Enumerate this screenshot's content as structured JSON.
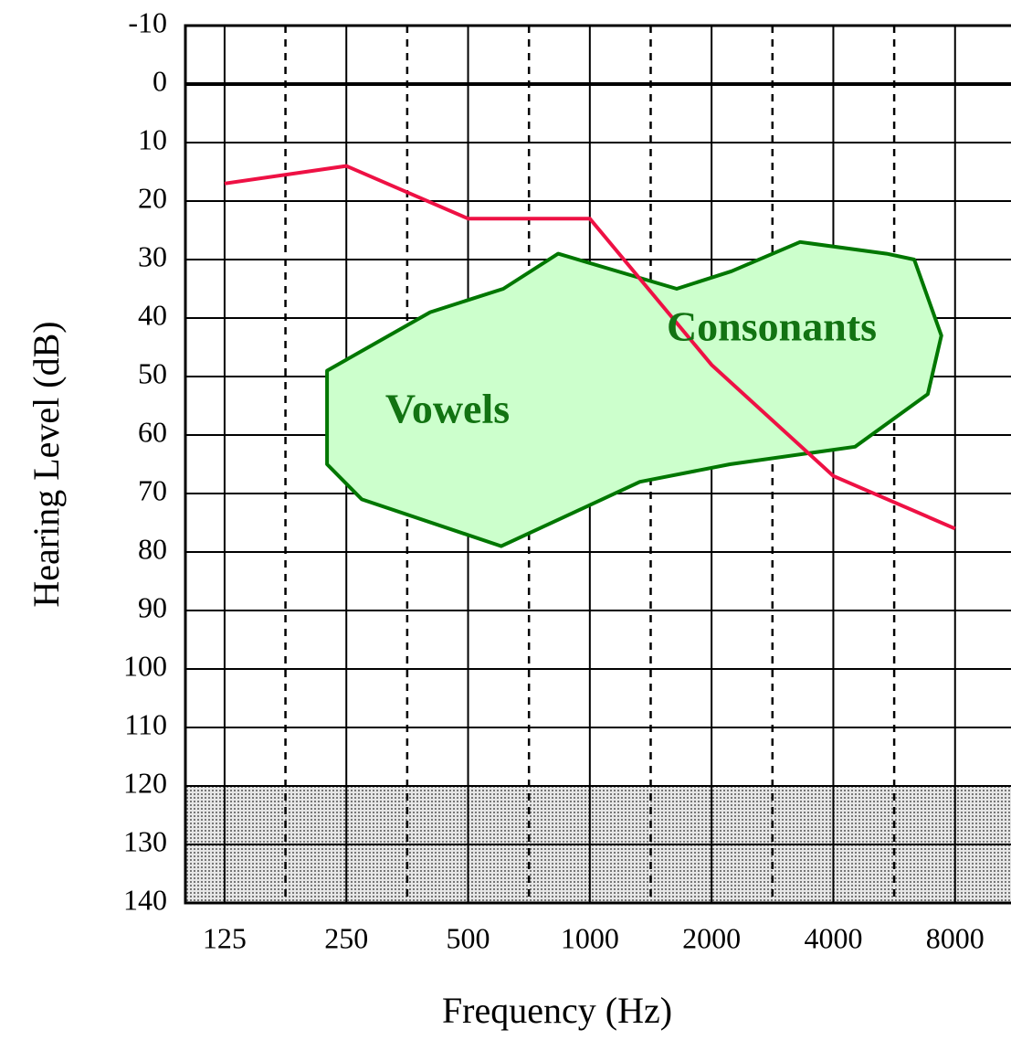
{
  "chart_data": {
    "type": "line",
    "ylabel": "Hearing Level (dB)",
    "xlabel": "Frequency (Hz)",
    "log_x": true,
    "y_inverted": true,
    "xlim": [
      100,
      11000
    ],
    "xticks": [
      125,
      250,
      500,
      1000,
      2000,
      4000,
      8000
    ],
    "ylim": [
      -10,
      140
    ],
    "yticks": [
      -10,
      0,
      10,
      20,
      30,
      40,
      50,
      60,
      70,
      80,
      90,
      100,
      110,
      120,
      130,
      140
    ],
    "grid": true,
    "shade": [
      120,
      140
    ],
    "line": {
      "color": "#ee1144",
      "x": [
        125,
        250,
        500,
        1000,
        2000,
        4000,
        8000
      ],
      "values": [
        17,
        14,
        23,
        23,
        48,
        67,
        76
      ]
    },
    "region": {
      "color": "#ccffcc",
      "edge": "#007700",
      "x": [
        224,
        224,
        273,
        604,
        1330,
        2220,
        4530,
        6850,
        7400,
        6340,
        5420,
        3310,
        2240,
        1640,
        835,
        611,
        403
      ],
      "values": [
        49,
        65,
        71,
        79,
        68,
        65,
        62,
        53,
        43,
        30,
        29,
        27,
        32,
        35,
        29,
        35,
        39
      ]
    },
    "annotations": [
      "Vowels",
      "Consonants"
    ]
  }
}
